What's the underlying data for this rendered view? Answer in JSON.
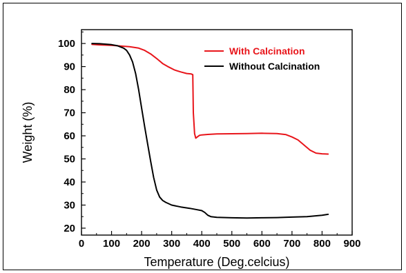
{
  "chart_data": {
    "type": "line",
    "title": "",
    "xlabel": "Temperature (Deg.celcius)",
    "ylabel": "Weight (%)",
    "xlim": [
      0,
      900
    ],
    "ylim": [
      17,
      106
    ],
    "x_ticks": [
      0,
      100,
      200,
      300,
      400,
      500,
      600,
      700,
      800,
      900
    ],
    "y_ticks": [
      20,
      30,
      40,
      50,
      60,
      70,
      80,
      90,
      100
    ],
    "grid": false,
    "legend_position": "top-right",
    "series": [
      {
        "name": "With Calcination",
        "color": "#e8141a",
        "x": [
          35,
          60,
          100,
          130,
          160,
          190,
          210,
          230,
          250,
          270,
          290,
          310,
          330,
          350,
          365,
          370,
          372,
          376,
          380,
          385,
          392,
          400,
          420,
          450,
          500,
          550,
          600,
          650,
          680,
          700,
          720,
          740,
          760,
          780,
          800,
          820
        ],
        "y": [
          99.6,
          99.4,
          99.2,
          98.9,
          98.6,
          98.0,
          97.0,
          95.5,
          93.5,
          91.3,
          89.8,
          88.5,
          87.7,
          87.0,
          86.8,
          86.5,
          70.0,
          61.0,
          59.0,
          59.5,
          60.2,
          60.4,
          60.6,
          60.8,
          60.9,
          61.0,
          61.1,
          61.0,
          60.5,
          59.5,
          58.2,
          56.0,
          53.8,
          52.5,
          52.2,
          52.1
        ]
      },
      {
        "name": "Without Calcination",
        "color": "#000000",
        "x": [
          35,
          60,
          100,
          120,
          140,
          150,
          160,
          170,
          180,
          190,
          200,
          210,
          220,
          230,
          240,
          250,
          260,
          270,
          280,
          300,
          330,
          360,
          380,
          400,
          410,
          420,
          430,
          450,
          500,
          550,
          600,
          650,
          700,
          750,
          800,
          820
        ],
        "y": [
          100,
          99.9,
          99.5,
          99.0,
          98.0,
          97.0,
          95.0,
          92.0,
          87.0,
          80.0,
          72.0,
          64.0,
          56.5,
          49.0,
          42.0,
          36.5,
          33.5,
          32.0,
          31.2,
          30.0,
          29.2,
          28.6,
          28.1,
          27.6,
          26.8,
          25.6,
          25.0,
          24.7,
          24.5,
          24.4,
          24.5,
          24.6,
          24.8,
          25.0,
          25.6,
          26.0
        ]
      }
    ]
  }
}
